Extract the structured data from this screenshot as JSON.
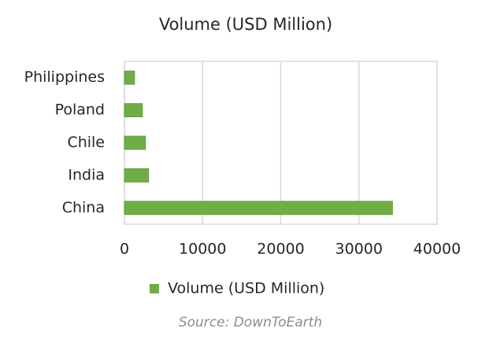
{
  "chart_data": {
    "type": "bar",
    "orientation": "horizontal",
    "title": "Volume (USD Million)",
    "categories": [
      "Philippines",
      "Poland",
      "Chile",
      "India",
      "China"
    ],
    "series": [
      {
        "name": "Volume (USD Million)",
        "color": "#70ad47",
        "values": [
          1300,
          2300,
          2700,
          3100,
          34300
        ]
      }
    ],
    "xlim": [
      0,
      40000
    ],
    "xticks": [
      0,
      10000,
      20000,
      30000,
      40000
    ],
    "grid": true,
    "legend": "bottom",
    "source": "Source: DownToEarth"
  }
}
